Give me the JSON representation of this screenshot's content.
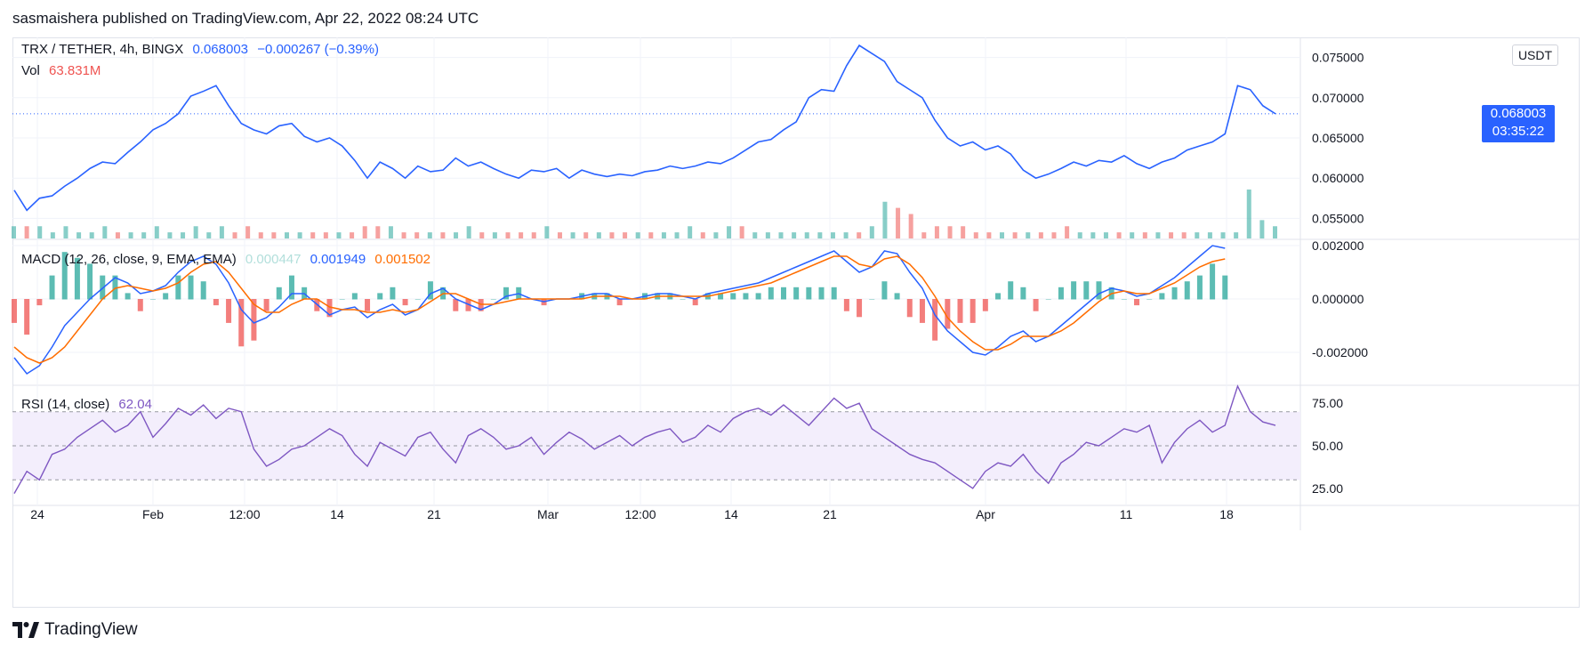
{
  "header": {
    "publish_line": "sasmaishera published on TradingView.com, Apr 22, 2022 08:24 UTC"
  },
  "footer": {
    "brand": "TradingView"
  },
  "currency_button": "USDT",
  "legend": {
    "symbol": "TRX / TETHER, 4h, BINGX",
    "last": "0.068003",
    "change": "−0.000267 (−0.39%)",
    "vol_label": "Vol",
    "vol_value": "63.831M",
    "macd_label": "MACD (12, 26, close, 9, EMA, EMA)",
    "macd_hist": "0.000447",
    "macd_line": "0.001949",
    "macd_signal": "0.001502",
    "rsi_label": "RSI (14, close)",
    "rsi_value": "62.04"
  },
  "price_tag": {
    "price": "0.068003",
    "countdown": "03:35:22"
  },
  "colors": {
    "price": "#2962ff",
    "macd": "#2962ff",
    "signal": "#ff6d00",
    "rsi": "#7e57c2",
    "up": "#26a69a",
    "down": "#ef5350",
    "rsi_band": "#f3eefc",
    "grid": "#f0f3fa"
  },
  "chart_data": [
    {
      "type": "line",
      "title": "TRX / TETHER, 4h, BINGX",
      "x_ticks": [
        "24",
        "Feb",
        "12:00",
        "14",
        "21",
        "Mar",
        "12:00",
        "14",
        "21",
        "Apr",
        "11",
        "18"
      ],
      "y_ticks": [
        "0.075000",
        "0.070000",
        "0.065000",
        "0.060000",
        "0.055000"
      ],
      "ylim": [
        0.0525,
        0.0775
      ],
      "series": [
        {
          "name": "TRX / TETHER",
          "x": [
            0,
            1,
            2,
            3,
            4,
            5,
            6,
            7,
            8,
            9,
            10,
            11,
            12,
            13,
            14,
            15,
            16,
            17,
            18,
            19,
            20,
            21,
            22,
            23,
            24,
            25,
            26,
            27,
            28,
            29,
            30,
            31,
            32,
            33,
            34,
            35,
            36,
            37,
            38,
            39,
            40,
            41,
            42,
            43,
            44,
            45,
            46,
            47,
            48,
            49,
            50,
            51,
            52,
            53,
            54,
            55,
            56,
            57,
            58,
            59,
            60,
            61,
            62,
            63,
            64,
            65,
            66,
            67,
            68,
            69,
            70,
            71,
            72,
            73,
            74,
            75,
            76,
            77,
            78,
            79,
            80,
            81,
            82,
            83,
            84,
            85,
            86,
            87,
            88,
            89,
            90,
            91,
            92,
            93,
            94,
            95,
            96,
            97,
            98,
            99,
            100
          ],
          "values": [
            0.0585,
            0.056,
            0.0575,
            0.0578,
            0.059,
            0.06,
            0.0612,
            0.062,
            0.0618,
            0.0632,
            0.0645,
            0.066,
            0.0668,
            0.068,
            0.0702,
            0.0708,
            0.0715,
            0.069,
            0.0668,
            0.066,
            0.0655,
            0.0665,
            0.0668,
            0.0652,
            0.0645,
            0.065,
            0.064,
            0.0622,
            0.06,
            0.062,
            0.0612,
            0.06,
            0.0615,
            0.0608,
            0.061,
            0.0625,
            0.0615,
            0.062,
            0.0612,
            0.0605,
            0.06,
            0.061,
            0.0608,
            0.0612,
            0.06,
            0.061,
            0.0605,
            0.0602,
            0.0605,
            0.0603,
            0.0608,
            0.061,
            0.0615,
            0.0612,
            0.0615,
            0.062,
            0.0618,
            0.0625,
            0.0635,
            0.0645,
            0.0648,
            0.066,
            0.067,
            0.07,
            0.071,
            0.0708,
            0.074,
            0.0765,
            0.0755,
            0.0745,
            0.072,
            0.071,
            0.07,
            0.0672,
            0.065,
            0.064,
            0.0645,
            0.0635,
            0.064,
            0.063,
            0.061,
            0.06,
            0.0605,
            0.0612,
            0.062,
            0.0615,
            0.0622,
            0.062,
            0.0628,
            0.0618,
            0.0612,
            0.062,
            0.0625,
            0.0635,
            0.064,
            0.0645,
            0.0655,
            0.0715,
            0.071,
            0.069,
            0.068
          ]
        }
      ],
      "last_price": 0.068003
    },
    {
      "type": "bar",
      "title": "Vol",
      "values": [
        2,
        2,
        2,
        1,
        2,
        1,
        1,
        2,
        1,
        1,
        1,
        2,
        1,
        1,
        2,
        1,
        2,
        1,
        2,
        1,
        1,
        1,
        1,
        1,
        1,
        1,
        1,
        2,
        2,
        2,
        1,
        1,
        1,
        1,
        1,
        2,
        1,
        1,
        1,
        1,
        1,
        2,
        1,
        1,
        1,
        1,
        1,
        1,
        1,
        1,
        1,
        1,
        2,
        1,
        1,
        2,
        2,
        1,
        1,
        1,
        1,
        1,
        1,
        1,
        1,
        1,
        2,
        6,
        5,
        4,
        1,
        2,
        2,
        2,
        1,
        1,
        1,
        1,
        1,
        1,
        1,
        2,
        1,
        1,
        1,
        1,
        1,
        1,
        1,
        1,
        1,
        1,
        1,
        1,
        1,
        8,
        3,
        2
      ]
    },
    {
      "type": "line",
      "title": "MACD (12, 26, close, 9, EMA, EMA)",
      "y_ticks": [
        "0.002000",
        "0.000000",
        "-0.002000"
      ],
      "ylim": [
        -0.0032,
        0.0022
      ],
      "series": [
        {
          "name": "MACD",
          "values": [
            -0.0022,
            -0.0028,
            -0.0025,
            -0.0018,
            -0.001,
            -0.0005,
            0.0,
            0.0004,
            0.0008,
            0.0006,
            0.0002,
            0.0003,
            0.0005,
            0.001,
            0.0014,
            0.0016,
            0.0013,
            0.0006,
            -0.0004,
            -0.0009,
            -0.0007,
            -0.0003,
            0.0002,
            0.0002,
            -0.0002,
            -0.0006,
            -0.0004,
            -0.0003,
            -0.0007,
            -0.0004,
            -0.0002,
            -0.0006,
            -0.0004,
            0.0002,
            0.0004,
            0.0,
            -0.0002,
            -0.0004,
            -0.0002,
            0.0001,
            0.0002,
            0.0,
            -0.0001,
            0.0,
            0.0,
            0.0001,
            0.0002,
            0.0002,
            0.0,
            0.0,
            0.0001,
            0.0002,
            0.0002,
            0.0001,
            0.0,
            0.0002,
            0.0003,
            0.0004,
            0.0005,
            0.0006,
            0.0008,
            0.001,
            0.0012,
            0.0014,
            0.0016,
            0.0018,
            0.0014,
            0.001,
            0.0012,
            0.0018,
            0.0017,
            0.001,
            0.0004,
            -0.0006,
            -0.0012,
            -0.0016,
            -0.002,
            -0.0021,
            -0.0018,
            -0.0014,
            -0.0012,
            -0.0016,
            -0.0014,
            -0.001,
            -0.0006,
            -0.0002,
            0.0002,
            0.0004,
            0.0003,
            0.0001,
            0.0002,
            0.0005,
            0.0008,
            0.0012,
            0.0016,
            0.002,
            0.0019
          ]
        },
        {
          "name": "Signal",
          "values": [
            -0.0018,
            -0.0022,
            -0.0024,
            -0.0022,
            -0.0018,
            -0.0012,
            -0.0006,
            0.0,
            0.0004,
            0.0005,
            0.0004,
            0.0003,
            0.0004,
            0.0006,
            0.001,
            0.0013,
            0.0014,
            0.001,
            0.0004,
            -0.0002,
            -0.0005,
            -0.0005,
            -0.0002,
            0.0,
            0.0,
            -0.0003,
            -0.0004,
            -0.0004,
            -0.0005,
            -0.0005,
            -0.0004,
            -0.0005,
            -0.0004,
            -0.0001,
            0.0002,
            0.0002,
            0.0,
            -0.0002,
            -0.0002,
            -0.0001,
            0.0,
            0.0,
            0.0,
            0.0,
            0.0,
            0.0,
            0.0001,
            0.0001,
            0.0001,
            0.0,
            0.0,
            0.0001,
            0.0001,
            0.0001,
            0.0001,
            0.0001,
            0.0002,
            0.0003,
            0.0004,
            0.0005,
            0.0006,
            0.0008,
            0.001,
            0.0012,
            0.0014,
            0.0016,
            0.0016,
            0.0013,
            0.0012,
            0.0015,
            0.0016,
            0.0013,
            0.0008,
            0.0001,
            -0.0007,
            -0.0012,
            -0.0016,
            -0.0019,
            -0.0019,
            -0.0017,
            -0.0014,
            -0.0014,
            -0.0014,
            -0.0012,
            -0.0009,
            -0.0005,
            -0.0001,
            0.0002,
            0.0003,
            0.0002,
            0.0002,
            0.0004,
            0.0006,
            0.0009,
            0.0012,
            0.0014,
            0.0015
          ]
        }
      ]
    },
    {
      "type": "line",
      "title": "RSI (14, close)",
      "y_ticks": [
        "75.00",
        "50.00",
        "25.00"
      ],
      "ylim": [
        15,
        85
      ],
      "band": [
        30,
        70
      ],
      "series": [
        {
          "name": "RSI",
          "values": [
            22,
            35,
            30,
            45,
            48,
            55,
            60,
            65,
            58,
            62,
            70,
            55,
            63,
            72,
            68,
            74,
            66,
            72,
            70,
            48,
            38,
            42,
            48,
            50,
            55,
            60,
            56,
            45,
            38,
            52,
            48,
            44,
            55,
            58,
            48,
            40,
            56,
            60,
            55,
            48,
            50,
            55,
            45,
            52,
            58,
            54,
            48,
            52,
            56,
            50,
            55,
            58,
            60,
            52,
            55,
            62,
            58,
            66,
            70,
            72,
            68,
            74,
            68,
            62,
            70,
            78,
            72,
            75,
            60,
            55,
            50,
            45,
            42,
            40,
            35,
            30,
            25,
            35,
            40,
            38,
            45,
            35,
            28,
            40,
            45,
            52,
            50,
            55,
            60,
            58,
            62,
            40,
            52,
            60,
            65,
            58,
            62,
            85,
            70,
            64,
            62
          ]
        }
      ]
    }
  ]
}
